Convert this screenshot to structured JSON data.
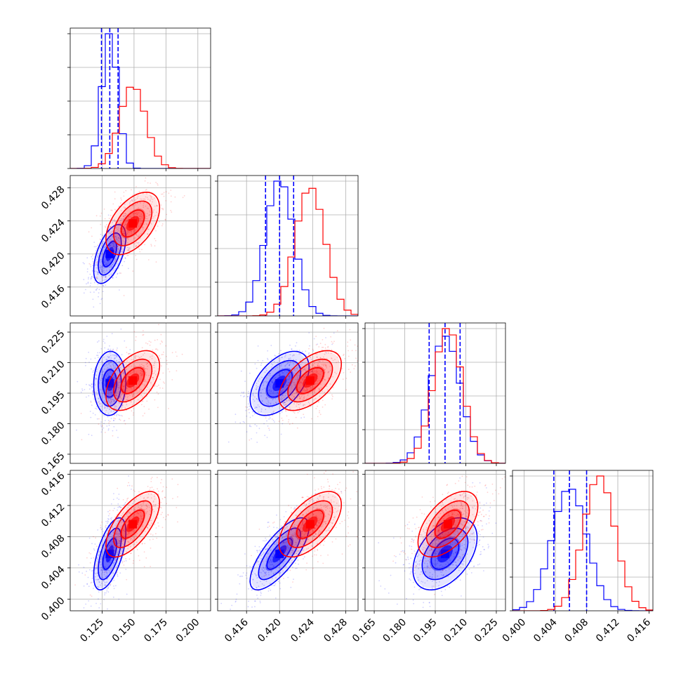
{
  "chart_data": {
    "type": "corner",
    "grid": true,
    "series": [
      {
        "name": "",
        "color": "#0000ff",
        "mean": [
          0.131,
          0.42,
          0.1998,
          0.4058
        ],
        "std": [
          0.006,
          0.0017,
          0.0075,
          0.0022
        ],
        "quantiles": [
          [
            0.1245,
            0.131,
            0.1375
          ],
          [
            0.4183,
            0.42,
            0.4217
          ],
          [
            0.192,
            0.1998,
            0.2072
          ],
          [
            0.4038,
            0.4058,
            0.408
          ]
        ],
        "corr": [
          [
            1.0,
            0.55,
            0.05,
            0.6
          ],
          [
            0.55,
            1.0,
            0.5,
            0.75
          ],
          [
            0.05,
            0.5,
            1.0,
            0.45
          ],
          [
            0.6,
            0.75,
            0.45,
            1.0
          ]
        ]
      },
      {
        "name": "",
        "color": "#ff0000",
        "mean": [
          0.149,
          0.4237,
          0.2012,
          0.4096
        ],
        "std": [
          0.01,
          0.0018,
          0.007,
          0.002
        ],
        "corr": [
          [
            1.0,
            0.5,
            0.5,
            0.65
          ],
          [
            0.5,
            1.0,
            0.55,
            0.6
          ],
          [
            0.5,
            0.55,
            1.0,
            0.55
          ],
          [
            0.65,
            0.6,
            0.55,
            1.0
          ]
        ]
      }
    ],
    "params": [
      {
        "range": [
          0.1,
          0.21
        ],
        "ticks": [
          "0.125",
          "0.150",
          "0.175",
          "0.200"
        ],
        "tickvals": [
          0.125,
          0.15,
          0.175,
          0.2
        ]
      },
      {
        "range": [
          0.4125,
          0.4295
        ],
        "ticks": [
          "0.416",
          "0.420",
          "0.424",
          "0.428"
        ],
        "tickvals": [
          0.416,
          0.42,
          0.424,
          0.428
        ]
      },
      {
        "range": [
          0.1605,
          0.2295
        ],
        "ticks": [
          "0.165",
          "0.180",
          "0.195",
          "0.210",
          "0.225"
        ],
        "tickvals": [
          0.165,
          0.18,
          0.195,
          0.21,
          0.225
        ]
      },
      {
        "range": [
          0.3985,
          0.4165
        ],
        "ticks": [
          "0.400",
          "0.404",
          "0.408",
          "0.412",
          "0.416"
        ],
        "tickvals": [
          0.4,
          0.404,
          0.408,
          0.412,
          0.416
        ]
      }
    ]
  }
}
